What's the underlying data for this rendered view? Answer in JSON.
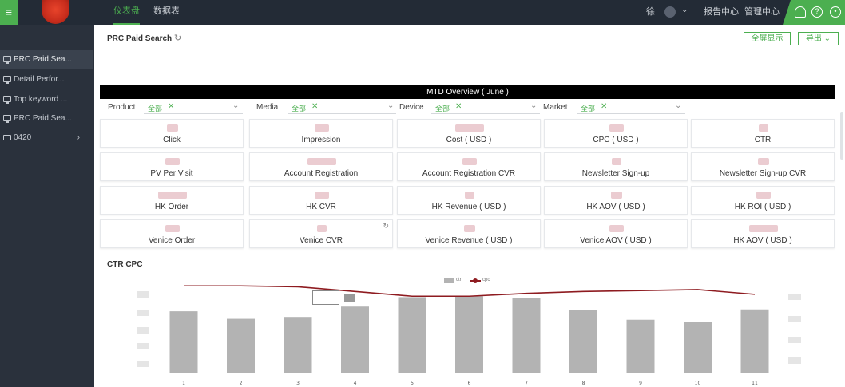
{
  "topbar": {
    "menu_icon": "hamburger-icon",
    "tabs": [
      {
        "label": "仪表盘",
        "active": true
      },
      {
        "label": "数据表",
        "active": false
      }
    ],
    "user_name": "徐",
    "links": [
      "报告中心",
      "管理中心"
    ],
    "icons": [
      "user-icon",
      "help-icon",
      "power-icon"
    ]
  },
  "sidebar": {
    "items": [
      {
        "label": "PRC Paid Sea...",
        "icon": "monitor-icon",
        "active": true
      },
      {
        "label": "Detail Perfor...",
        "icon": "monitor-icon",
        "active": false
      },
      {
        "label": "Top keyword ...",
        "icon": "monitor-icon",
        "active": false
      },
      {
        "label": "PRC Paid Sea...",
        "icon": "monitor-icon",
        "active": false
      },
      {
        "label": "0420",
        "icon": "folder-icon",
        "active": false
      }
    ]
  },
  "header": {
    "title": "PRC Paid Search",
    "fullscreen_label": "全屏显示",
    "export_label": "导出"
  },
  "overview": {
    "title": "MTD Overview  ( June )"
  },
  "filters": [
    {
      "label": "Product",
      "value": "全部"
    },
    {
      "label": "Media",
      "value": "全部"
    },
    {
      "label": "Device",
      "value": "全部"
    },
    {
      "label": "Market",
      "value": "全部"
    }
  ],
  "metrics": [
    [
      "Click",
      "Impression",
      "Cost ( USD )",
      "CPC ( USD )",
      "CTR"
    ],
    [
      "PV Per Visit",
      "Account Registration",
      "Account Registration CVR",
      "Newsletter Sign-up",
      "Newsletter Sign-up CVR"
    ],
    [
      "HK Order",
      "HK CVR",
      "HK Revenue ( USD )",
      "HK AOV ( USD )",
      "HK ROI ( USD )"
    ],
    [
      "Venice Order",
      "Venice CVR",
      "Venice Revenue ( USD )",
      "Venice AOV ( USD )",
      "HK AOV ( USD )"
    ]
  ],
  "chart": {
    "title": "CTR CPC",
    "legend": [
      "ctr",
      "cpc"
    ],
    "colors": {
      "bar": "#b3b3b3",
      "line": "#8e1b20"
    }
  },
  "chart_data": {
    "type": "bar",
    "title": "CTR CPC",
    "categories": [
      "1",
      "2",
      "3",
      "4",
      "5",
      "6",
      "7",
      "8",
      "9",
      "10",
      "11"
    ],
    "series": [
      {
        "name": "ctr",
        "type": "bar",
        "values": [
          0.66,
          0.58,
          0.6,
          0.71,
          0.81,
          0.82,
          0.8,
          0.67,
          0.57,
          0.55,
          0.68
        ]
      },
      {
        "name": "cpc",
        "type": "line",
        "values": [
          0.93,
          0.93,
          0.92,
          0.87,
          0.82,
          0.82,
          0.85,
          0.87,
          0.88,
          0.89,
          0.84
        ]
      }
    ],
    "ylim": [
      0,
      1
    ],
    "legend_position": "top-center",
    "grid": false
  }
}
